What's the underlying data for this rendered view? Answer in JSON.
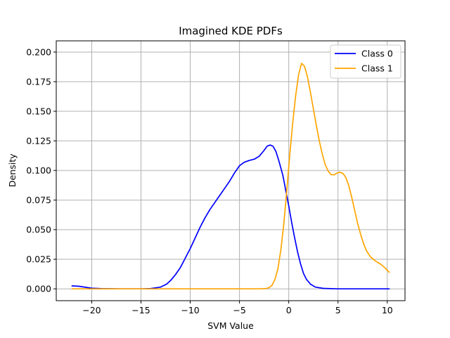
{
  "chart_data": {
    "type": "line",
    "title": "Imagined KDE PDFs",
    "xlabel": "SVM Value",
    "ylabel": "Density",
    "xlim": [
      -23.6,
      11.8
    ],
    "ylim": [
      -0.01,
      0.2095
    ],
    "xticks": [
      -20,
      -15,
      -10,
      -5,
      0,
      5,
      10
    ],
    "xtick_labels": [
      "−20",
      "−15",
      "−10",
      "−5",
      "0",
      "5",
      "10"
    ],
    "yticks": [
      0.0,
      0.025,
      0.05,
      0.075,
      0.1,
      0.125,
      0.15,
      0.175,
      0.2
    ],
    "ytick_labels": [
      "0.000",
      "0.025",
      "0.050",
      "0.075",
      "0.100",
      "0.125",
      "0.150",
      "0.175",
      "0.200"
    ],
    "grid": true,
    "legend": "top-right",
    "series": [
      {
        "name": "Class 0",
        "color": "#0000ff",
        "points": [
          [
            -22.0,
            0.0025
          ],
          [
            -21.3,
            0.0022
          ],
          [
            -20.6,
            0.0013
          ],
          [
            -20.0,
            0.0006
          ],
          [
            -19.0,
            0.0002
          ],
          [
            -17.0,
            0.0
          ],
          [
            -15.0,
            0.0
          ],
          [
            -14.0,
            0.0003
          ],
          [
            -13.0,
            0.0015
          ],
          [
            -12.4,
            0.004
          ],
          [
            -12.0,
            0.007
          ],
          [
            -11.5,
            0.012
          ],
          [
            -11.0,
            0.018
          ],
          [
            -10.5,
            0.026
          ],
          [
            -10.0,
            0.034
          ],
          [
            -9.5,
            0.043
          ],
          [
            -9.0,
            0.052
          ],
          [
            -8.5,
            0.06
          ],
          [
            -8.0,
            0.067
          ],
          [
            -7.5,
            0.073
          ],
          [
            -7.0,
            0.079
          ],
          [
            -6.5,
            0.085
          ],
          [
            -6.0,
            0.091
          ],
          [
            -5.5,
            0.098
          ],
          [
            -5.0,
            0.104
          ],
          [
            -4.5,
            0.107
          ],
          [
            -4.0,
            0.1085
          ],
          [
            -3.5,
            0.1095
          ],
          [
            -3.0,
            0.112
          ],
          [
            -2.5,
            0.117
          ],
          [
            -2.2,
            0.1205
          ],
          [
            -1.9,
            0.1215
          ],
          [
            -1.6,
            0.1205
          ],
          [
            -1.3,
            0.116
          ],
          [
            -1.0,
            0.108
          ],
          [
            -0.6,
            0.096
          ],
          [
            -0.3,
            0.083
          ],
          [
            0.0,
            0.07
          ],
          [
            0.3,
            0.056
          ],
          [
            0.6,
            0.043
          ],
          [
            0.9,
            0.031
          ],
          [
            1.2,
            0.021
          ],
          [
            1.5,
            0.013
          ],
          [
            1.8,
            0.008
          ],
          [
            2.2,
            0.004
          ],
          [
            2.7,
            0.0015
          ],
          [
            3.5,
            0.0004
          ],
          [
            5.0,
            0.0
          ],
          [
            7.0,
            0.0
          ],
          [
            10.2,
            0.0
          ]
        ]
      },
      {
        "name": "Class 1",
        "color": "#ffa500",
        "points": [
          [
            -22.0,
            0.0
          ],
          [
            -18.0,
            0.0
          ],
          [
            -14.0,
            0.0
          ],
          [
            -10.0,
            0.0
          ],
          [
            -6.0,
            0.0
          ],
          [
            -3.0,
            0.0
          ],
          [
            -2.3,
            0.0003
          ],
          [
            -2.0,
            0.001
          ],
          [
            -1.7,
            0.003
          ],
          [
            -1.4,
            0.008
          ],
          [
            -1.1,
            0.017
          ],
          [
            -0.8,
            0.033
          ],
          [
            -0.5,
            0.055
          ],
          [
            -0.2,
            0.083
          ],
          [
            0.1,
            0.113
          ],
          [
            0.4,
            0.14
          ],
          [
            0.7,
            0.163
          ],
          [
            1.0,
            0.181
          ],
          [
            1.3,
            0.1905
          ],
          [
            1.6,
            0.188
          ],
          [
            1.9,
            0.179
          ],
          [
            2.2,
            0.166
          ],
          [
            2.5,
            0.152
          ],
          [
            2.8,
            0.138
          ],
          [
            3.1,
            0.125
          ],
          [
            3.4,
            0.114
          ],
          [
            3.7,
            0.105
          ],
          [
            4.0,
            0.0995
          ],
          [
            4.3,
            0.0965
          ],
          [
            4.6,
            0.0963
          ],
          [
            4.9,
            0.0978
          ],
          [
            5.2,
            0.0985
          ],
          [
            5.5,
            0.0975
          ],
          [
            5.8,
            0.094
          ],
          [
            6.1,
            0.087
          ],
          [
            6.4,
            0.077
          ],
          [
            6.7,
            0.066
          ],
          [
            7.0,
            0.055
          ],
          [
            7.3,
            0.046
          ],
          [
            7.6,
            0.038
          ],
          [
            7.9,
            0.032
          ],
          [
            8.3,
            0.027
          ],
          [
            8.8,
            0.0235
          ],
          [
            9.3,
            0.021
          ],
          [
            9.8,
            0.0175
          ],
          [
            10.2,
            0.014
          ]
        ]
      }
    ]
  }
}
